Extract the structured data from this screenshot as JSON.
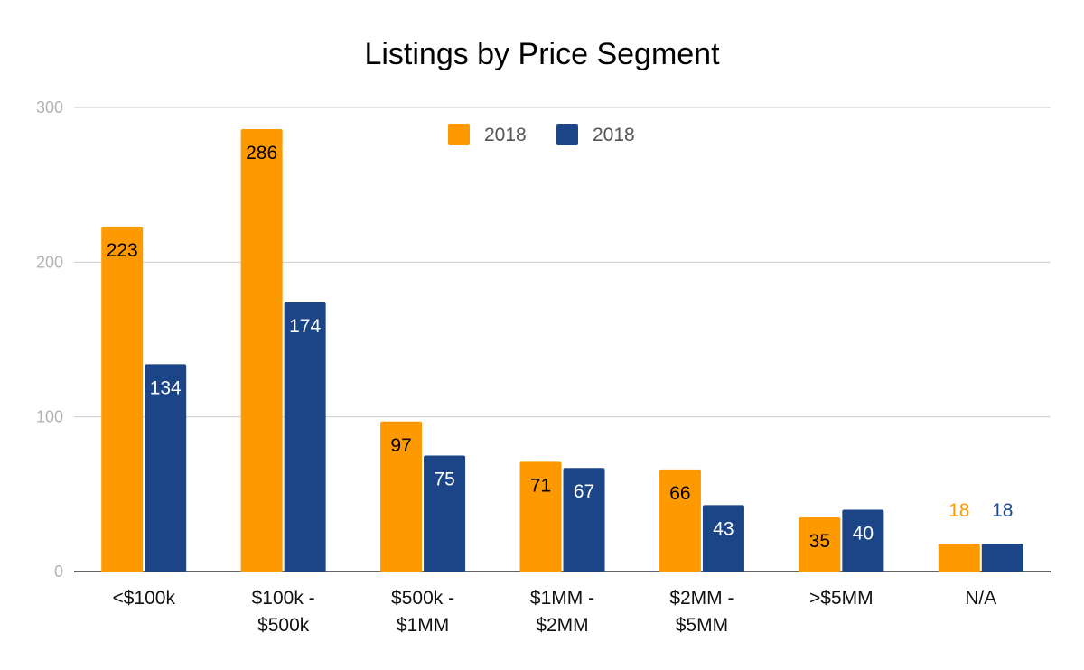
{
  "chart_data": {
    "type": "bar",
    "title": "Listings by Price Segment",
    "xlabel": "",
    "ylabel": "",
    "ylim": [
      0,
      300
    ],
    "yticks": [
      0,
      100,
      200,
      300
    ],
    "grid": true,
    "legend_position": "top-center",
    "categories": [
      [
        "<$100k"
      ],
      [
        "$100k -",
        "$500k"
      ],
      [
        "$500k -",
        "$1MM"
      ],
      [
        "$1MM -",
        "$2MM"
      ],
      [
        "$2MM -",
        "$5MM"
      ],
      [
        ">$5MM"
      ],
      [
        "N/A"
      ]
    ],
    "series": [
      {
        "name": "2018",
        "color": "#FF9900",
        "label_color": "#000000",
        "values": [
          223,
          286,
          97,
          71,
          66,
          35,
          18
        ]
      },
      {
        "name": "2018",
        "color": "#1C4587",
        "label_color": "#FFFFFF",
        "values": [
          134,
          174,
          75,
          67,
          43,
          40,
          18
        ]
      }
    ]
  }
}
